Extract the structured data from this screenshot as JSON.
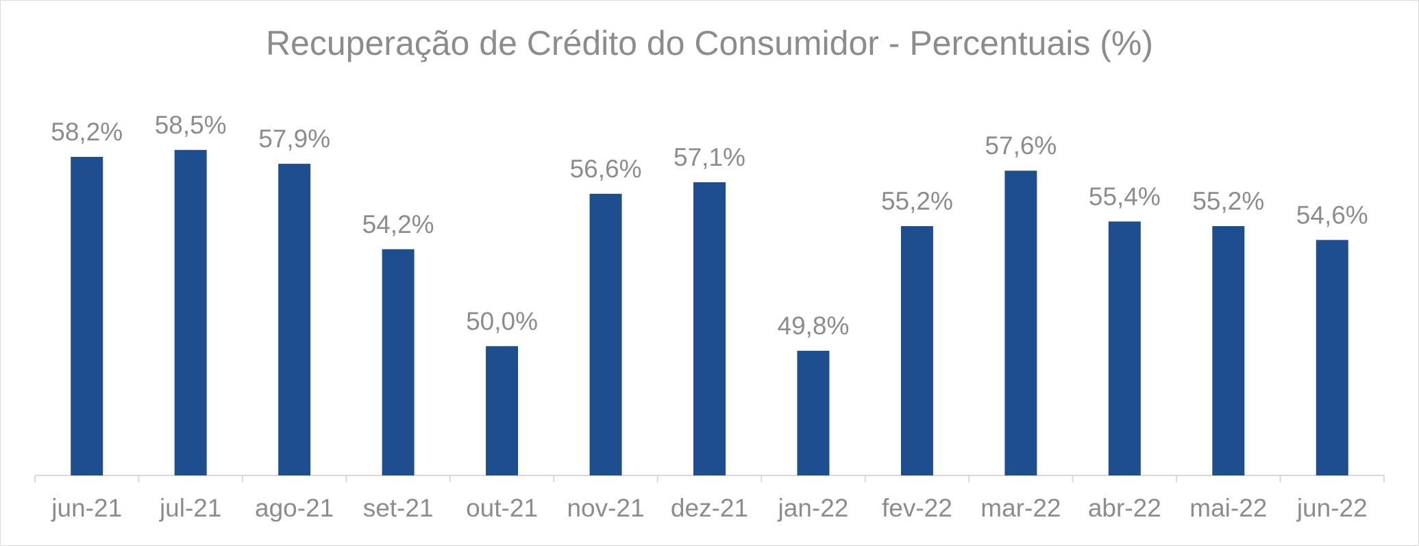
{
  "chart_data": {
    "type": "bar",
    "title": "Recuperação de Crédito do Consumidor - Percentuais (%)",
    "xlabel": "",
    "ylabel": "",
    "categories": [
      "jun-21",
      "jul-21",
      "ago-21",
      "set-21",
      "out-21",
      "nov-21",
      "dez-21",
      "jan-22",
      "fev-22",
      "mar-22",
      "abr-22",
      "mai-22",
      "jun-22"
    ],
    "values": [
      58.2,
      58.5,
      57.9,
      54.2,
      50.0,
      56.6,
      57.1,
      49.8,
      55.2,
      57.6,
      55.4,
      55.2,
      54.6
    ],
    "data_labels": [
      "58,2%",
      "58,5%",
      "57,9%",
      "54,2%",
      "50,0%",
      "56,6%",
      "57,1%",
      "49,8%",
      "55,2%",
      "57,6%",
      "55,4%",
      "55,2%",
      "54,6%"
    ],
    "ylim": [
      44.4,
      59.0
    ],
    "grid": false,
    "legend": "none",
    "colors": {
      "bar": "#1f4e8f",
      "text": "#8c8c8c",
      "axis": "#d9d9d9"
    }
  }
}
